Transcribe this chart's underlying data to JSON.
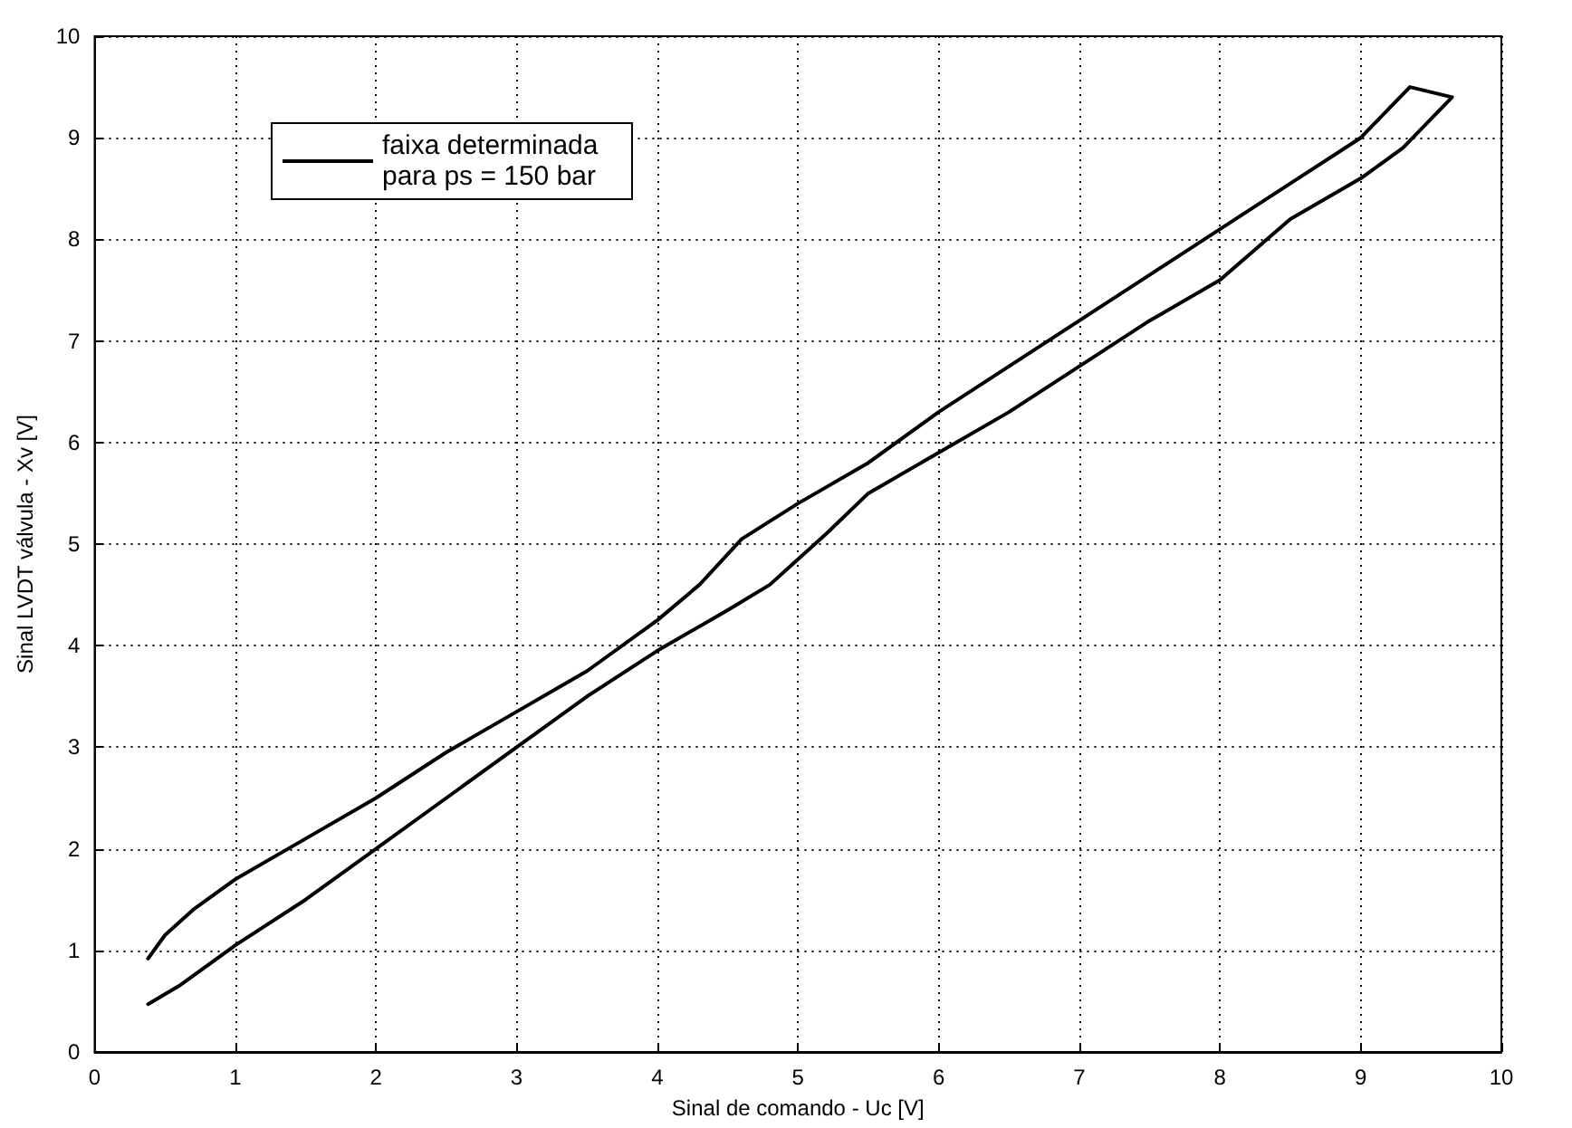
{
  "chart_data": {
    "type": "line",
    "xlabel": "Sinal de comando - Uc [V]",
    "ylabel": "Sinal LVDT válvula - Xv [V]",
    "xlim": [
      0,
      10
    ],
    "xticks": [
      0,
      1,
      2,
      3,
      4,
      5,
      6,
      7,
      8,
      9,
      10
    ],
    "ylim": [
      0,
      10
    ],
    "yticks": [
      0,
      1,
      2,
      3,
      4,
      5,
      6,
      7,
      8,
      9,
      10
    ],
    "grid": true,
    "legend": "top left",
    "marker": "none",
    "line_style": "solid",
    "series": [
      {
        "name": "faixa determinada para ps = 150 bar",
        "color": "#000000",
        "x": [
          0.38,
          0.5,
          0.7,
          1,
          1.5,
          2,
          2.5,
          3,
          3.5,
          4,
          4.3,
          4.6,
          5,
          5.5,
          6,
          6.5,
          7,
          7.5,
          8,
          8.5,
          9,
          9.35,
          9.65,
          9.3,
          9,
          8.5,
          8,
          7.5,
          7,
          6.5,
          6,
          5.5,
          5.2,
          5,
          4.8,
          4.5,
          4,
          3.5,
          3,
          2.5,
          2,
          1.5,
          1,
          0.6,
          0.38
        ],
        "values": [
          0.92,
          1.15,
          1.4,
          1.7,
          2.1,
          2.5,
          2.95,
          3.35,
          3.75,
          4.25,
          4.6,
          5.05,
          5.4,
          5.8,
          6.3,
          6.75,
          7.2,
          7.65,
          8.1,
          8.55,
          9.0,
          9.5,
          9.4,
          8.9,
          8.6,
          8.2,
          7.6,
          7.2,
          6.75,
          6.3,
          5.9,
          5.5,
          5.1,
          4.85,
          4.6,
          4.35,
          3.95,
          3.5,
          3.0,
          2.5,
          2.0,
          1.5,
          1.05,
          0.65,
          0.47
        ]
      }
    ]
  }
}
